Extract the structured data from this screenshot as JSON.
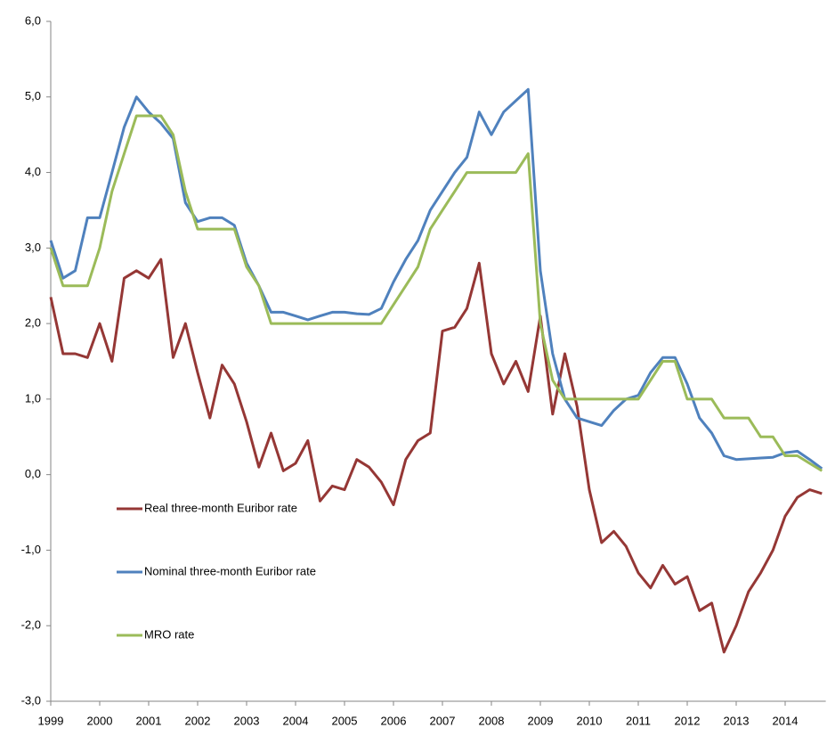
{
  "chart_data": {
    "type": "line",
    "x": [
      1999,
      1999.25,
      1999.5,
      1999.75,
      2000,
      2000.25,
      2000.5,
      2000.75,
      2001,
      2001.25,
      2001.5,
      2001.75,
      2002,
      2002.25,
      2002.5,
      2002.75,
      2003,
      2003.25,
      2003.5,
      2003.75,
      2004,
      2004.25,
      2004.5,
      2004.75,
      2005,
      2005.25,
      2005.5,
      2005.75,
      2006,
      2006.25,
      2006.5,
      2006.75,
      2007,
      2007.25,
      2007.5,
      2007.75,
      2008,
      2008.25,
      2008.5,
      2008.75,
      2009,
      2009.25,
      2009.5,
      2009.75,
      2010,
      2010.25,
      2010.5,
      2010.75,
      2011,
      2011.25,
      2011.5,
      2011.75,
      2012,
      2012.25,
      2012.5,
      2012.75,
      2013,
      2013.25,
      2013.5,
      2013.75,
      2014,
      2014.25,
      2014.5,
      2014.75
    ],
    "series": [
      {
        "name": "Real three-month Euribor rate",
        "color": "#953735",
        "values": [
          2.35,
          1.6,
          1.6,
          1.55,
          2.0,
          1.5,
          2.6,
          2.7,
          2.6,
          2.85,
          1.55,
          2.0,
          1.35,
          0.75,
          1.45,
          1.2,
          0.7,
          0.1,
          0.55,
          0.05,
          0.15,
          0.45,
          -0.35,
          -0.15,
          -0.2,
          0.2,
          0.1,
          -0.1,
          -0.4,
          0.2,
          0.45,
          0.55,
          1.9,
          1.95,
          2.2,
          2.8,
          1.6,
          1.2,
          1.5,
          1.1,
          2.1,
          0.8,
          1.6,
          0.9,
          -0.2,
          -0.9,
          -0.75,
          -0.95,
          -1.3,
          -1.5,
          -1.2,
          -1.45,
          -1.35,
          -1.8,
          -1.7,
          -2.35,
          -2.0,
          -1.55,
          -1.3,
          -1.0,
          -0.55,
          -0.3,
          -0.2,
          -0.25
        ]
      },
      {
        "name": "Nominal three-month Euribor rate",
        "color": "#4f81bd",
        "values": [
          3.1,
          2.6,
          2.7,
          3.4,
          3.4,
          4.0,
          4.6,
          5.0,
          4.8,
          4.65,
          4.45,
          3.6,
          3.35,
          3.4,
          3.4,
          3.3,
          2.8,
          2.5,
          2.15,
          2.15,
          2.1,
          2.05,
          2.1,
          2.15,
          2.15,
          2.13,
          2.12,
          2.2,
          2.55,
          2.85,
          3.1,
          3.5,
          3.75,
          4.0,
          4.2,
          4.8,
          4.5,
          4.8,
          4.95,
          5.1,
          2.7,
          1.6,
          1.0,
          0.75,
          0.7,
          0.65,
          0.85,
          1.0,
          1.05,
          1.35,
          1.55,
          1.55,
          1.2,
          0.75,
          0.55,
          0.25,
          0.2,
          0.21,
          0.22,
          0.23,
          0.29,
          0.31,
          0.2,
          0.08
        ]
      },
      {
        "name": "MRO rate",
        "color": "#9bbb59",
        "values": [
          3.0,
          2.5,
          2.5,
          2.5,
          3.0,
          3.75,
          4.25,
          4.75,
          4.75,
          4.75,
          4.5,
          3.75,
          3.25,
          3.25,
          3.25,
          3.25,
          2.75,
          2.5,
          2.0,
          2.0,
          2.0,
          2.0,
          2.0,
          2.0,
          2.0,
          2.0,
          2.0,
          2.0,
          2.25,
          2.5,
          2.75,
          3.25,
          3.5,
          3.75,
          4.0,
          4.0,
          4.0,
          4.0,
          4.0,
          4.25,
          2.0,
          1.25,
          1.0,
          1.0,
          1.0,
          1.0,
          1.0,
          1.0,
          1.0,
          1.25,
          1.5,
          1.5,
          1.0,
          1.0,
          1.0,
          0.75,
          0.75,
          0.75,
          0.5,
          0.5,
          0.25,
          0.25,
          0.15,
          0.05
        ]
      }
    ],
    "xlim": [
      1999,
      2014.83
    ],
    "xticks": [
      1999,
      2000,
      2001,
      2002,
      2003,
      2004,
      2005,
      2006,
      2007,
      2008,
      2009,
      2010,
      2011,
      2012,
      2013,
      2014
    ],
    "ylim": [
      -3,
      6
    ],
    "yticks": [
      {
        "value": -3,
        "label": "-3,0"
      },
      {
        "value": -2,
        "label": "-2,0"
      },
      {
        "value": -1,
        "label": "-1,0"
      },
      {
        "value": 0,
        "label": "0,0"
      },
      {
        "value": 1,
        "label": "1,0"
      },
      {
        "value": 2,
        "label": "2,0"
      },
      {
        "value": 3,
        "label": "3,0"
      },
      {
        "value": 4,
        "label": "4,0"
      },
      {
        "value": 5,
        "label": "5,0"
      },
      {
        "value": 6,
        "label": "6,0"
      }
    ],
    "grid": false
  }
}
